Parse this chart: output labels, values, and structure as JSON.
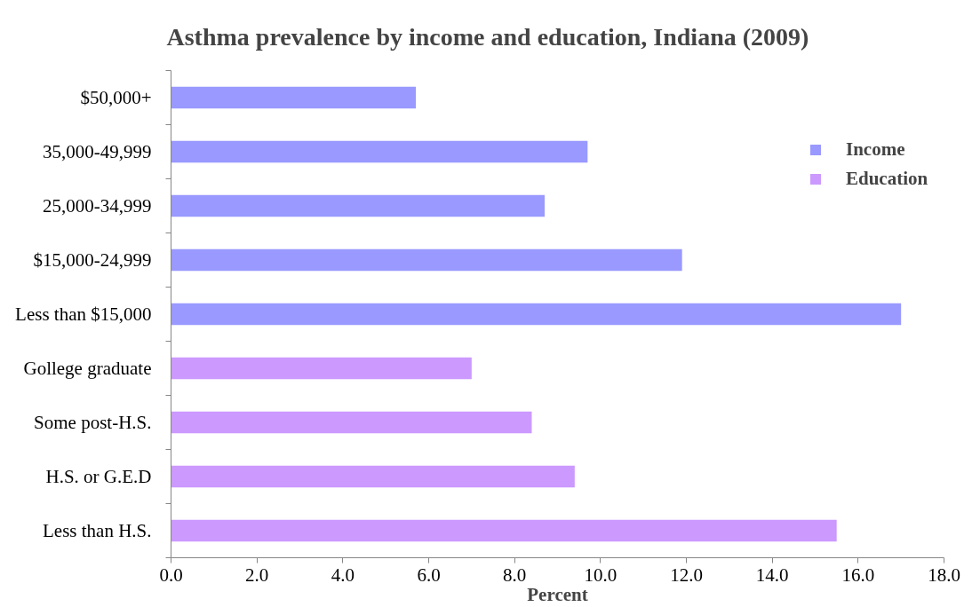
{
  "chart_data": {
    "type": "bar",
    "orientation": "horizontal",
    "title": "Asthma prevalence by income and education, Indiana (2009)",
    "xlabel": "Percent",
    "categories": [
      "$50,000+",
      "35,000-49,999",
      "25,000-34,999",
      "$15,000-24,999",
      "Less than $15,000",
      "Gollege graduate",
      "Some post-H.S.",
      "H.S. or G.E.D",
      "Less than H.S."
    ],
    "series": [
      {
        "name": "Income",
        "color": "#9999ff",
        "values": [
          5.7,
          9.7,
          8.7,
          11.9,
          17.0,
          null,
          null,
          null,
          null
        ]
      },
      {
        "name": "Education",
        "color": "#cc99ff",
        "values": [
          null,
          null,
          null,
          null,
          null,
          7.0,
          8.4,
          9.4,
          15.5
        ]
      }
    ],
    "xlim": [
      0,
      18
    ],
    "xticks": [
      {
        "value": 0,
        "label": "0.0"
      },
      {
        "value": 2,
        "label": "2.0"
      },
      {
        "value": 4,
        "label": "4.0"
      },
      {
        "value": 6,
        "label": "6.0"
      },
      {
        "value": 8,
        "label": "8.0"
      },
      {
        "value": 10,
        "label": "10.0"
      },
      {
        "value": 12,
        "label": "12.0"
      },
      {
        "value": 14,
        "label": "14.0"
      },
      {
        "value": 16,
        "label": "16.0"
      },
      {
        "value": 18,
        "label": "18.0"
      }
    ],
    "legend": "top right",
    "grid": false
  }
}
